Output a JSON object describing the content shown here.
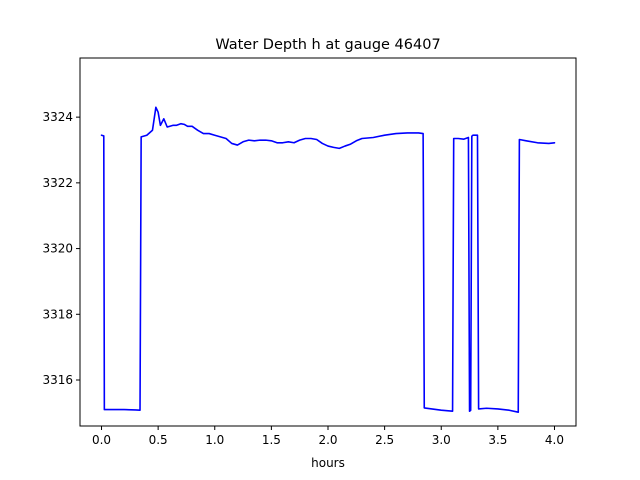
{
  "chart_data": {
    "type": "line",
    "title": "Water Depth h at gauge 46407",
    "xlabel": "hours",
    "ylabel": "",
    "xlim": [
      -0.19,
      4.19
    ],
    "ylim": [
      3314.6,
      3325.8
    ],
    "xticks": [
      0.0,
      0.5,
      1.0,
      1.5,
      2.0,
      2.5,
      3.0,
      3.5,
      4.0
    ],
    "xtick_labels": [
      "0.0",
      "0.5",
      "1.0",
      "1.5",
      "2.0",
      "2.5",
      "3.0",
      "3.5",
      "4.0"
    ],
    "yticks": [
      3316,
      3318,
      3320,
      3322,
      3324
    ],
    "ytick_labels": [
      "3316",
      "3318",
      "3320",
      "3322",
      "3324"
    ],
    "grid": false,
    "series": [
      {
        "name": "",
        "color": "#0000ff",
        "x": [
          0.0,
          0.02,
          0.025,
          0.1,
          0.2,
          0.3,
          0.34,
          0.35,
          0.4,
          0.45,
          0.48,
          0.5,
          0.52,
          0.55,
          0.58,
          0.6,
          0.63,
          0.66,
          0.7,
          0.73,
          0.76,
          0.8,
          0.85,
          0.9,
          0.95,
          1.0,
          1.05,
          1.1,
          1.15,
          1.2,
          1.25,
          1.3,
          1.35,
          1.4,
          1.45,
          1.5,
          1.55,
          1.6,
          1.65,
          1.7,
          1.75,
          1.8,
          1.85,
          1.9,
          1.95,
          2.0,
          2.05,
          2.1,
          2.15,
          2.2,
          2.25,
          2.3,
          2.4,
          2.5,
          2.6,
          2.7,
          2.8,
          2.84,
          2.85,
          3.0,
          3.1,
          3.11,
          3.15,
          3.2,
          3.24,
          3.25,
          3.26,
          3.27,
          3.28,
          3.3,
          3.32,
          3.33,
          3.4,
          3.5,
          3.6,
          3.68,
          3.69,
          3.75,
          3.85,
          3.95,
          4.0
        ],
        "y": [
          3323.45,
          3323.43,
          3315.1,
          3315.1,
          3315.1,
          3315.09,
          3315.08,
          3323.4,
          3323.45,
          3323.6,
          3324.3,
          3324.15,
          3323.75,
          3323.95,
          3323.7,
          3323.72,
          3323.75,
          3323.75,
          3323.8,
          3323.78,
          3323.72,
          3323.72,
          3323.6,
          3323.5,
          3323.5,
          3323.45,
          3323.4,
          3323.35,
          3323.2,
          3323.15,
          3323.25,
          3323.3,
          3323.28,
          3323.3,
          3323.3,
          3323.28,
          3323.22,
          3323.22,
          3323.25,
          3323.22,
          3323.3,
          3323.35,
          3323.35,
          3323.32,
          3323.2,
          3323.12,
          3323.08,
          3323.05,
          3323.12,
          3323.18,
          3323.28,
          3323.35,
          3323.38,
          3323.45,
          3323.5,
          3323.52,
          3323.52,
          3323.5,
          3315.15,
          3315.08,
          3315.05,
          3323.35,
          3323.35,
          3323.33,
          3323.38,
          3315.05,
          3315.08,
          3323.42,
          3323.45,
          3323.45,
          3323.45,
          3315.12,
          3315.14,
          3315.12,
          3315.08,
          3315.02,
          3323.32,
          3323.28,
          3323.22,
          3323.2,
          3323.22
        ]
      }
    ]
  }
}
